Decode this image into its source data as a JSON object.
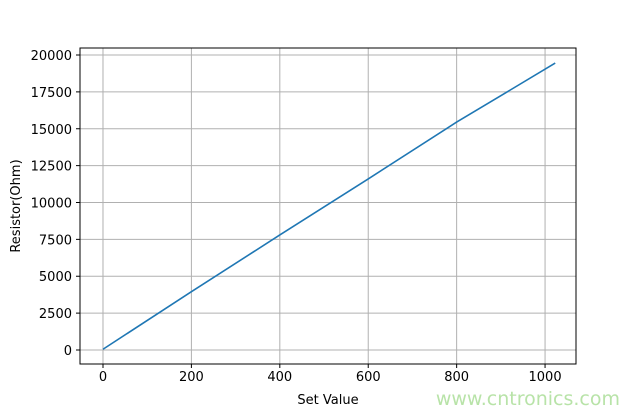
{
  "chart_data": {
    "type": "line",
    "title": "",
    "xlabel": "Set Value",
    "ylabel": "Resistor(Ohm)",
    "xlim": [
      -52,
      1070
    ],
    "ylim": [
      -950,
      20475
    ],
    "xticks": [
      0,
      200,
      400,
      600,
      800,
      1000
    ],
    "xtick_labels": [
      "0",
      "200",
      "400",
      "600",
      "800",
      "1000"
    ],
    "yticks": [
      0,
      2500,
      5000,
      7500,
      10000,
      12500,
      15000,
      17500,
      20000
    ],
    "ytick_labels": [
      "0",
      "2500",
      "5000",
      "7500",
      "10000",
      "12500",
      "15000",
      "17500",
      "20000"
    ],
    "grid": true,
    "series": [
      {
        "color": "#1f77b4",
        "x": [
          0,
          200,
          400,
          600,
          800,
          1023
        ],
        "y": [
          50,
          3950,
          7800,
          11600,
          15450,
          19450
        ]
      }
    ]
  },
  "watermark": "www.cntronics.com"
}
